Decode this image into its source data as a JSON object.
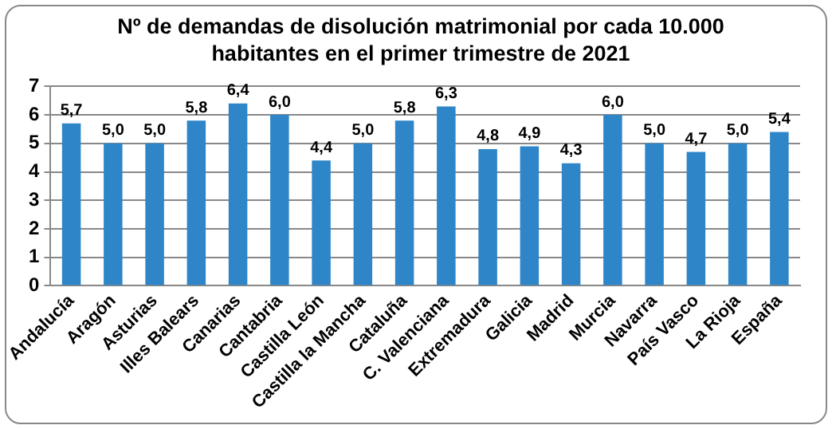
{
  "chart_data": {
    "type": "bar",
    "title": "Nº de demandas de disolución matrimonial por cada 10.000 habitantes en el primer trimestre de 2021",
    "categories": [
      "Andalucía",
      "Aragón",
      "Asturias",
      "Illes Balears",
      "Canarias",
      "Cantabria",
      "Castilla León",
      "Castilla la Mancha",
      "Cataluña",
      "C. Valenciana",
      "Extremadura",
      "Galicia",
      "Madrid",
      "Murcia",
      "Navarra",
      "País Vasco",
      "La Rioja",
      "España"
    ],
    "values": [
      5.7,
      5.0,
      5.0,
      5.8,
      6.4,
      6.0,
      4.4,
      5.0,
      5.8,
      6.3,
      4.8,
      4.9,
      4.3,
      6.0,
      5.0,
      4.7,
      5.0,
      5.4
    ],
    "value_labels": [
      "5,7",
      "5,0",
      "5,0",
      "5,8",
      "6,4",
      "6,0",
      "4,4",
      "5,0",
      "5,8",
      "6,3",
      "4,8",
      "4,9",
      "4,3",
      "6,0",
      "5,0",
      "4,7",
      "5,0",
      "5,4"
    ],
    "color": "#2e86c8",
    "ylim": [
      0,
      7
    ],
    "yticks": [
      0,
      1,
      2,
      3,
      4,
      5,
      6,
      7
    ],
    "grid": "y",
    "legend": false
  }
}
